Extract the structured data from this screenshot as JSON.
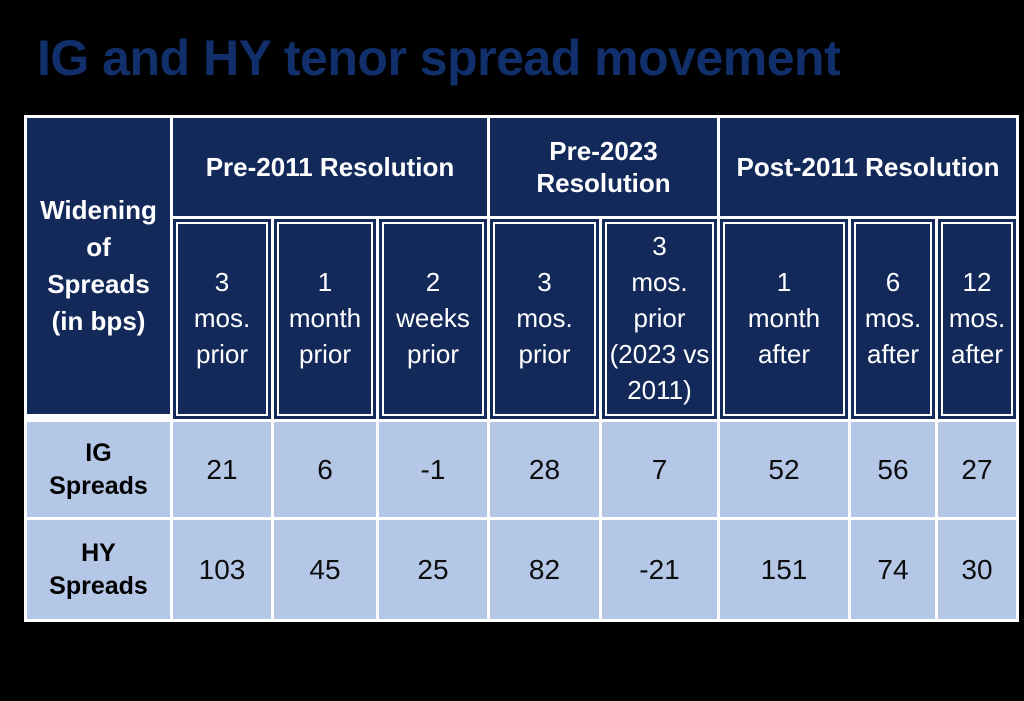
{
  "title": "IG and HY tenor spread movement",
  "colors": {
    "background": "#000000",
    "title_text": "#102F6B",
    "header_bg": "#13295A",
    "header_text": "#FFFFFF",
    "data_bg": "#B4C7E7",
    "data_text": "#0D0D0D",
    "grid_lines": "#FFFFFF"
  },
  "table": {
    "corner_header": "Widening\nof\nSpreads\n(in bps)",
    "groups": [
      {
        "label": "Pre-2011 Resolution",
        "span": 3
      },
      {
        "label": "Pre-2023\nResolution",
        "span": 2
      },
      {
        "label": "Post-2011 Resolution",
        "span": 3
      }
    ],
    "sub_headers": [
      "3\nmos.\nprior",
      "1\nmonth\nprior",
      "2\nweeks\nprior",
      "3\nmos.\nprior",
      "3\nmos.\nprior\n(2023 vs\n2011)",
      "1\nmonth\nafter",
      "6\nmos.\nafter",
      "12\nmos.\nafter"
    ],
    "rows": [
      {
        "label": "IG\nSpreads",
        "values": [
          "21",
          "6",
          "-1",
          "28",
          "7",
          "52",
          "56",
          "27"
        ]
      },
      {
        "label": "HY\nSpreads",
        "values": [
          "103",
          "45",
          "25",
          "82",
          "-21",
          "151",
          "74",
          "30"
        ]
      }
    ]
  },
  "chart_data": {
    "type": "table",
    "title": "IG and HY tenor spread movement",
    "row_header": "Widening of Spreads (in bps)",
    "column_groups": [
      {
        "label": "Pre-2011 Resolution",
        "columns": [
          "3 mos. prior",
          "1 month prior",
          "2 weeks prior"
        ]
      },
      {
        "label": "Pre-2023 Resolution",
        "columns": [
          "3 mos. prior",
          "3 mos. prior (2023 vs 2011)"
        ]
      },
      {
        "label": "Post-2011 Resolution",
        "columns": [
          "1 month after",
          "6 mos. after",
          "12 mos. after"
        ]
      }
    ],
    "rows": [
      {
        "label": "IG Spreads",
        "values": [
          21,
          6,
          -1,
          28,
          7,
          52,
          56,
          27
        ]
      },
      {
        "label": "HY Spreads",
        "values": [
          103,
          45,
          25,
          82,
          -21,
          151,
          74,
          30
        ]
      }
    ]
  }
}
